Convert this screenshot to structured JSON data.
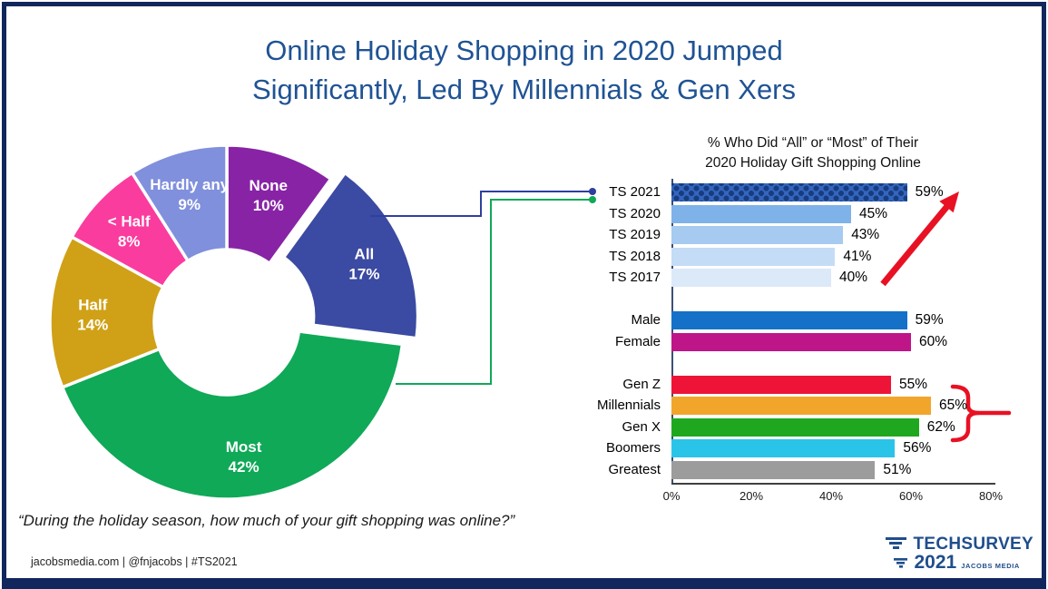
{
  "slide": {
    "title_line1": "Online Holiday Shopping in 2020 Jumped",
    "title_line2": "Significantly, Led By Millennials & Gen Xers",
    "quote": "“During the holiday season, how much of your gift shopping was online?”",
    "footer": "jacobsmedia.com   |   @fnjacobs   |   #TS2021",
    "frame_color": "#12265E",
    "title_color": "#1F5394"
  },
  "logo": {
    "brand": "TECHSURVEY",
    "year": "2021",
    "company": "JACOBS MEDIA",
    "color": "#1F4E8C"
  },
  "chart_data": [
    {
      "type": "pie",
      "subtype": "doughnut",
      "question": "“During the holiday season, how much of your gift shopping was online?”",
      "start_angle_deg": 0,
      "direction": "clockwise",
      "slices": [
        {
          "label": "None",
          "value": 10,
          "color": "#8823A6",
          "exploded": false
        },
        {
          "label": "All",
          "value": 17,
          "color": "#3B4AA2",
          "exploded": true
        },
        {
          "label": "Most",
          "value": 42,
          "color": "#0FA957",
          "exploded": false
        },
        {
          "label": "Half",
          "value": 14,
          "color": "#D0A117",
          "exploded": false
        },
        {
          "label": "< Half",
          "value": 8,
          "color": "#FA3C9E",
          "exploded": false
        },
        {
          "label": "Hardly any",
          "value": 9,
          "color": "#8090DC",
          "exploded": false
        }
      ]
    },
    {
      "type": "bar",
      "orientation": "horizontal",
      "title_line1": "% Who Did “All” or “Most” of Their",
      "title_line2": "2020 Holiday Gift Shopping Online",
      "xlim": [
        0,
        80
      ],
      "x_ticks": [
        "0%",
        "20%",
        "40%",
        "60%",
        "80%"
      ],
      "value_suffix": "%",
      "rows": [
        {
          "label": "TS 2021",
          "value": 59,
          "color": "#1E4489",
          "pattern": "dots"
        },
        {
          "label": "TS 2020",
          "value": 45,
          "color": "#7FB2E8"
        },
        {
          "label": "TS 2019",
          "value": 43,
          "color": "#A7CAF0"
        },
        {
          "label": "TS 2018",
          "value": 41,
          "color": "#C4DCF5"
        },
        {
          "label": "TS 2017",
          "value": 40,
          "color": "#DCE9F8"
        },
        {
          "gap": true
        },
        {
          "label": "Male",
          "value": 59,
          "color": "#1570C8"
        },
        {
          "label": "Female",
          "value": 60,
          "color": "#BE1588"
        },
        {
          "gap": true
        },
        {
          "label": "Gen Z",
          "value": 55,
          "color": "#EE1438"
        },
        {
          "label": "Millennials",
          "value": 65,
          "color": "#F2A52B"
        },
        {
          "label": "Gen X",
          "value": 62,
          "color": "#1FA81F"
        },
        {
          "label": "Boomers",
          "value": 56,
          "color": "#2AC4E8"
        },
        {
          "label": "Greatest",
          "value": 51,
          "color": "#9C9C9C"
        }
      ]
    }
  ],
  "annotations": {
    "trend_arrow_color": "#E81123",
    "brace_color": "#E81123",
    "connector_blue": "#2F3F9E",
    "connector_green": "#0FA957"
  }
}
